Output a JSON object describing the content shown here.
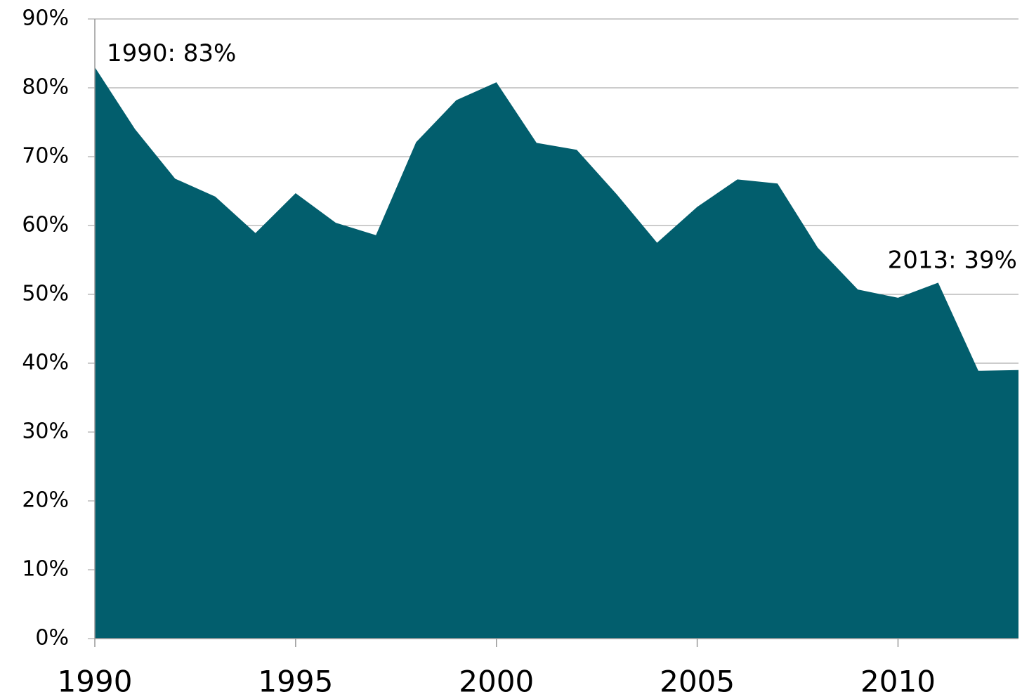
{
  "chart_data": {
    "type": "area",
    "x": [
      1990,
      1991,
      1992,
      1993,
      1994,
      1995,
      1996,
      1997,
      1998,
      1999,
      2000,
      2001,
      2002,
      2003,
      2004,
      2005,
      2006,
      2007,
      2008,
      2009,
      2010,
      2011,
      2012,
      2013
    ],
    "values": [
      83,
      74,
      66.8,
      64.2,
      58.9,
      64.7,
      60.4,
      58.6,
      72.1,
      78.2,
      80.8,
      72,
      71,
      64.5,
      57.5,
      62.7,
      66.7,
      66.1,
      56.8,
      50.7,
      49.5,
      51.7,
      38.9,
      39
    ],
    "color": "#025e6d",
    "xlim": [
      1990,
      2013
    ],
    "xticks": [
      1990,
      1995,
      2000,
      2005,
      2010
    ],
    "ylim": [
      0,
      90
    ],
    "yticks": [
      {
        "value": 0,
        "label": "0%"
      },
      {
        "value": 10,
        "label": "10%"
      },
      {
        "value": 20,
        "label": "20%"
      },
      {
        "value": 30,
        "label": "30%"
      },
      {
        "value": 40,
        "label": "40%"
      },
      {
        "value": 50,
        "label": "50%"
      },
      {
        "value": 60,
        "label": "60%"
      },
      {
        "value": 70,
        "label": "70%"
      },
      {
        "value": 80,
        "label": "80%"
      },
      {
        "value": 90,
        "label": "90%"
      }
    ],
    "grid": true,
    "annotations": [
      {
        "text": "1990: 83%",
        "x": 1990,
        "y": 83
      },
      {
        "text": "2013: 39%",
        "x": 2013,
        "y": 39
      }
    ]
  }
}
